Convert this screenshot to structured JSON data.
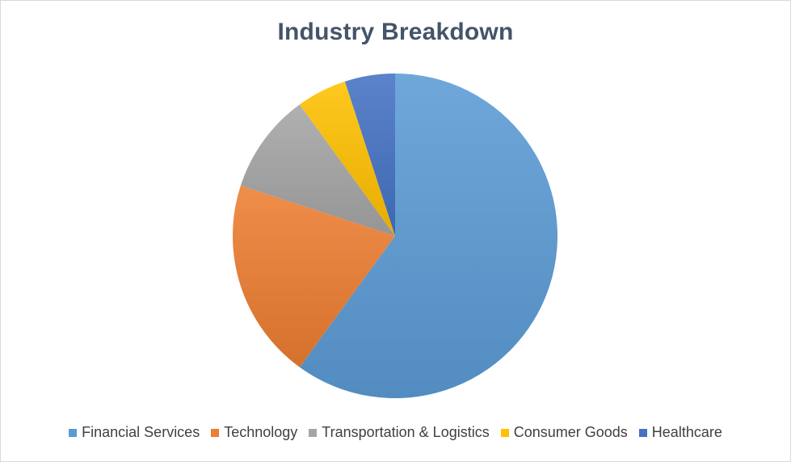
{
  "chart_data": {
    "type": "pie",
    "title": "Industry Breakdown",
    "categories": [
      "Financial Services",
      "Technology",
      "Transportation & Logistics",
      "Consumer Goods",
      "Healthcare"
    ],
    "values": [
      60,
      20,
      10,
      5,
      5
    ],
    "colors": [
      "#5b9bd5",
      "#ed7d31",
      "#a5a5a5",
      "#ffc000",
      "#4472c4"
    ],
    "legend_position": "bottom",
    "start_angle": "12 o'clock",
    "direction": "clockwise"
  }
}
